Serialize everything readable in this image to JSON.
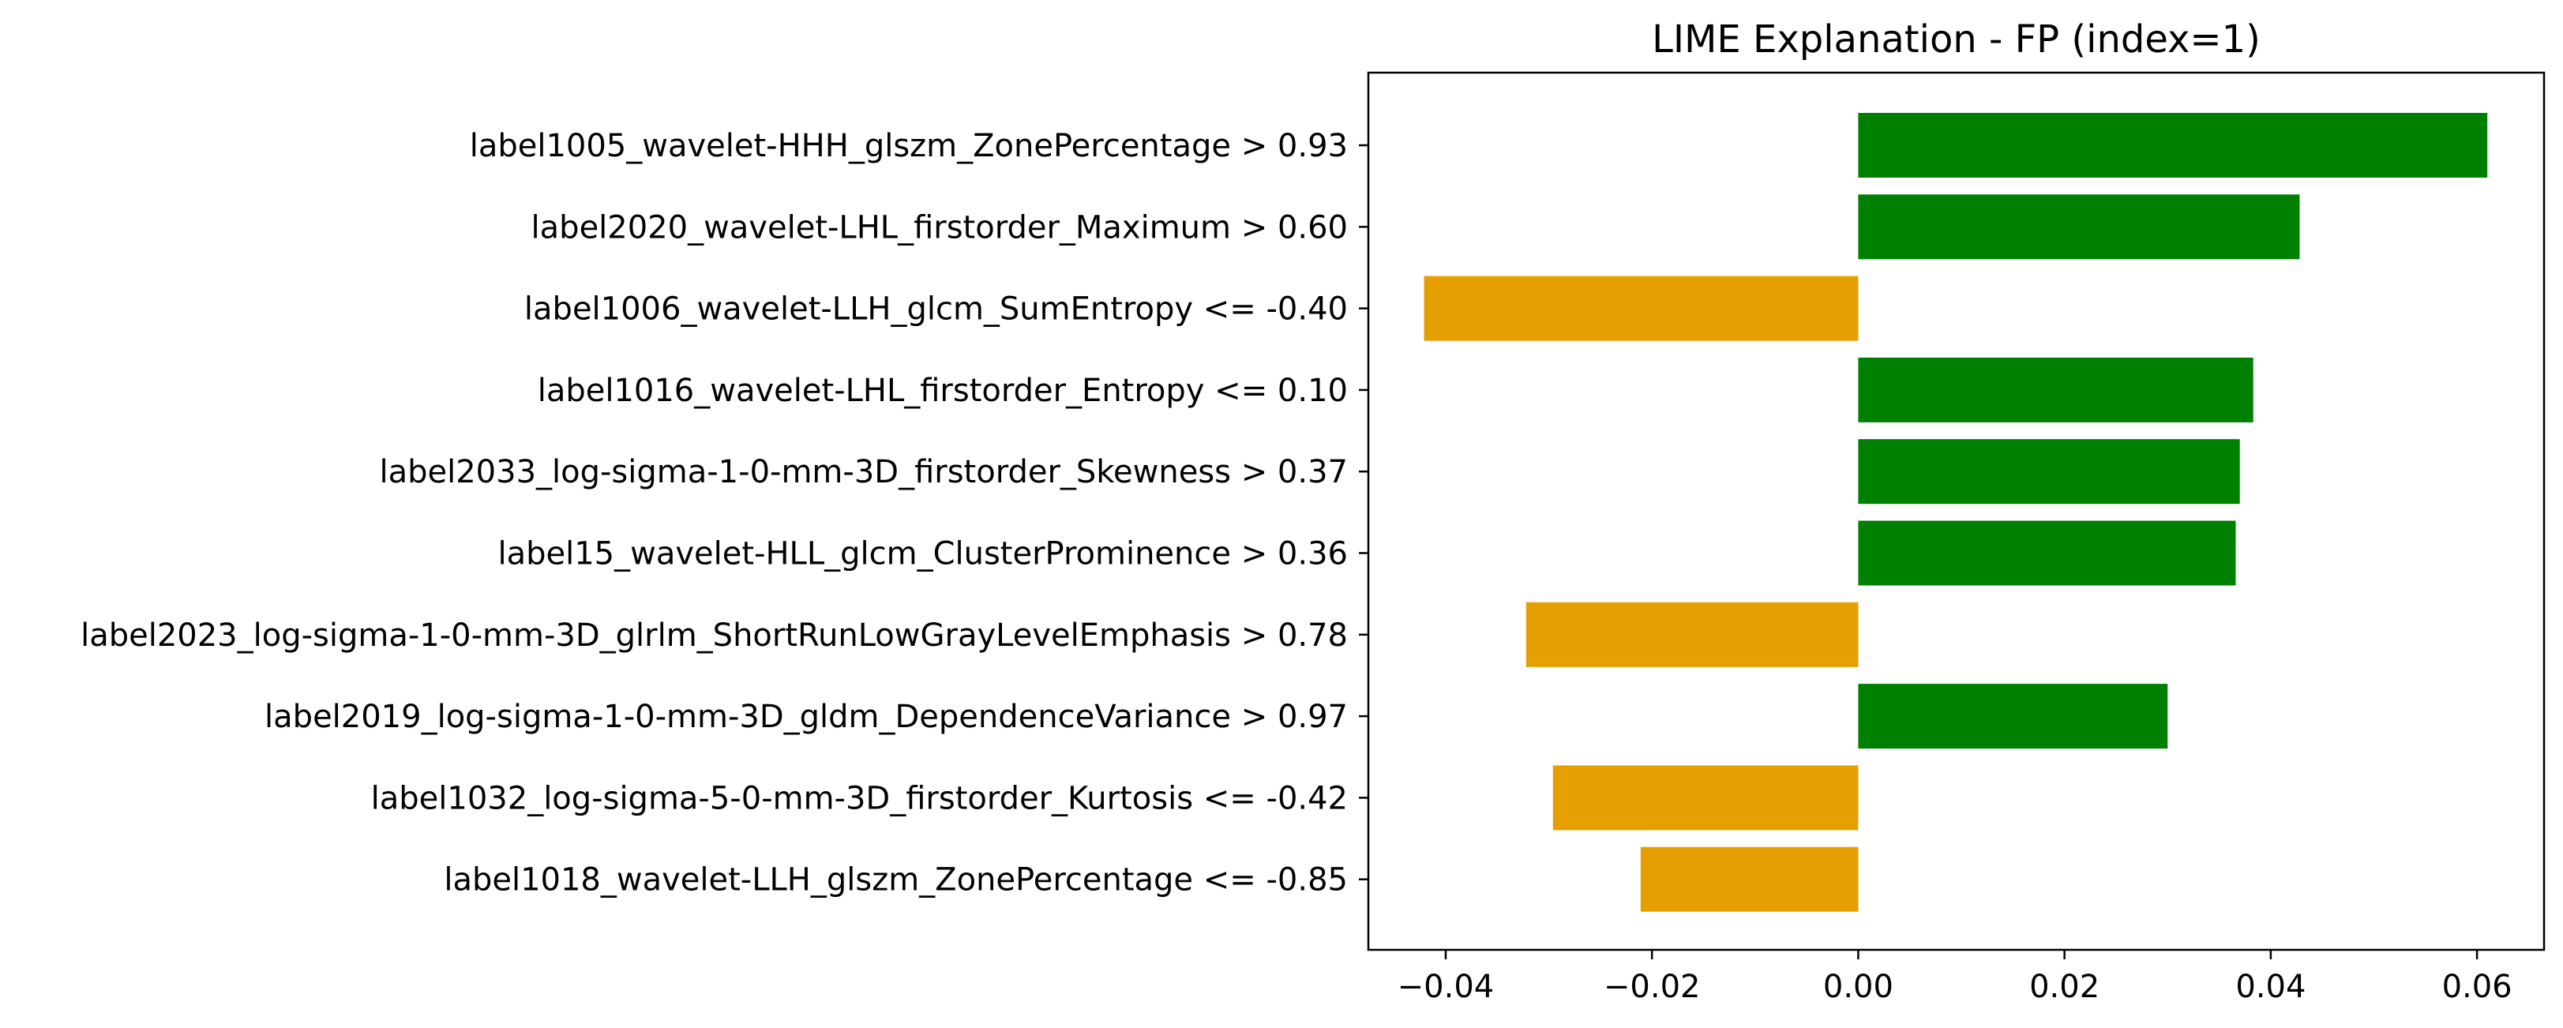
{
  "chart_data": {
    "type": "bar",
    "orientation": "horizontal",
    "title": "LIME Explanation - FP (index=1)",
    "xlabel": "",
    "ylabel": "",
    "xlim": [
      -0.0475,
      0.0665
    ],
    "xticks": [
      -0.04,
      -0.02,
      0.0,
      0.02,
      0.04,
      0.06
    ],
    "xtick_labels": [
      "−0.04",
      "−0.02",
      "0.00",
      "0.02",
      "0.04",
      "0.06"
    ],
    "grid": false,
    "legend": "none",
    "colors": {
      "positive": "#008000",
      "negative": "#E69F00"
    },
    "categories": [
      "label1005_wavelet-HHH_glszm_ZonePercentage > 0.93",
      "label2020_wavelet-LHL_firstorder_Maximum > 0.60",
      "label1006_wavelet-LLH_glcm_SumEntropy <= -0.40",
      "label1016_wavelet-LHL_firstorder_Entropy <= 0.10",
      "label2033_log-sigma-1-0-mm-3D_firstorder_Skewness > 0.37",
      "label15_wavelet-HLL_glcm_ClusterProminence > 0.36",
      "label2023_log-sigma-1-0-mm-3D_glrlm_ShortRunLowGrayLevelEmphasis > 0.78",
      "label2019_log-sigma-1-0-mm-3D_gldm_DependenceVariance > 0.97",
      "label1032_log-sigma-5-0-mm-3D_firstorder_Kurtosis <= -0.42",
      "label1018_wavelet-LLH_glszm_ZonePercentage <= -0.85"
    ],
    "values": [
      0.061,
      0.0428,
      -0.0421,
      0.0383,
      0.037,
      0.0366,
      -0.0322,
      0.03,
      -0.0296,
      -0.0211
    ]
  }
}
